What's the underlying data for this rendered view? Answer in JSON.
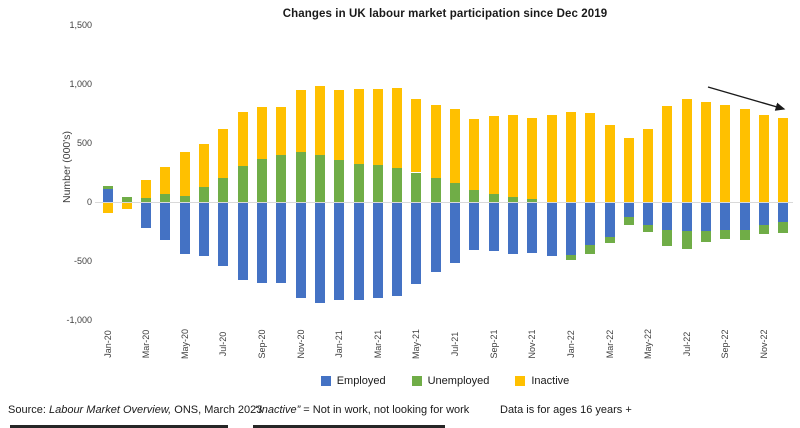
{
  "title": "Changes in UK labour market participation since Dec 2019",
  "y_axis": {
    "label": "Number (000's)",
    "ticks": [
      {
        "label": "1,500",
        "value": 1500
      },
      {
        "label": "1,000",
        "value": 1000
      },
      {
        "label": "500",
        "value": 500
      },
      {
        "label": "0",
        "value": 0
      },
      {
        "label": "-500",
        "value": -500
      },
      {
        "label": "-1,000",
        "value": -1000
      }
    ]
  },
  "chart_data": {
    "type": "bar",
    "stacked": true,
    "title": "Changes in UK labour market participation since Dec 2019",
    "ylabel": "Number (000's)",
    "xlabel": "",
    "ylim": [
      -1000,
      1500
    ],
    "grid": false,
    "legend_position": "bottom",
    "x_labels_every": 2,
    "categories": [
      "Jan-20",
      "Feb-20",
      "Mar-20",
      "Apr-20",
      "May-20",
      "Jun-20",
      "Jul-20",
      "Aug-20",
      "Sep-20",
      "Oct-20",
      "Nov-20",
      "Dec-20",
      "Jan-21",
      "Feb-21",
      "Mar-21",
      "Apr-21",
      "May-21",
      "Jun-21",
      "Jul-21",
      "Aug-21",
      "Sep-21",
      "Oct-21",
      "Nov-21",
      "Dec-21",
      "Jan-22",
      "Feb-22",
      "Mar-22",
      "Apr-22",
      "May-22",
      "Jun-22",
      "Jul-22",
      "Aug-22",
      "Sep-22",
      "Oct-22",
      "Nov-22",
      "Dec-22"
    ],
    "series": [
      {
        "name": "Employed",
        "color": "#4472C4",
        "values": [
          110,
          0,
          -215,
          -310,
          -430,
          -450,
          -530,
          -655,
          -680,
          -680,
          -805,
          -850,
          -820,
          -820,
          -805,
          -790,
          -685,
          -585,
          -505,
          -400,
          -410,
          -430,
          -420,
          -450,
          -440,
          -360,
          -290,
          -120,
          -190,
          -225,
          -235,
          -240,
          -225,
          -230,
          -185,
          -165
        ]
      },
      {
        "name": "Unemployed",
        "color": "#70AD47",
        "values": [
          25,
          40,
          35,
          65,
          55,
          125,
          200,
          305,
          365,
          395,
          420,
          400,
          360,
          325,
          310,
          285,
          250,
          205,
          160,
          105,
          70,
          40,
          25,
          0,
          -40,
          -75,
          -45,
          -65,
          -55,
          -140,
          -155,
          -90,
          -80,
          -80,
          -75,
          -90
        ]
      },
      {
        "name": "Inactive",
        "color": "#FFC000",
        "values": [
          -85,
          -50,
          155,
          235,
          365,
          370,
          420,
          455,
          440,
          410,
          525,
          580,
          585,
          635,
          650,
          680,
          620,
          620,
          625,
          600,
          655,
          695,
          690,
          735,
          760,
          755,
          650,
          540,
          615,
          810,
          870,
          845,
          820,
          790,
          735,
          715
        ]
      }
    ],
    "annotations": [
      {
        "type": "arrow",
        "meaning": "downward trend in inactive since mid-2022",
        "direction": "down-right"
      }
    ]
  },
  "legend": {
    "items": [
      {
        "label": "Employed",
        "color": "#4472C4"
      },
      {
        "label": "Unemployed",
        "color": "#70AD47"
      },
      {
        "label": "Inactive",
        "color": "#FFC000"
      }
    ]
  },
  "footer": {
    "source_prefix": "Source: ",
    "source_italic": "Labour Market  Overview,",
    "source_suffix": " ONS, March 2023",
    "note_italic": "“Inactive”",
    "note_text": " = Not in work, not looking for work",
    "ages": "Data is for ages 16 years +"
  }
}
